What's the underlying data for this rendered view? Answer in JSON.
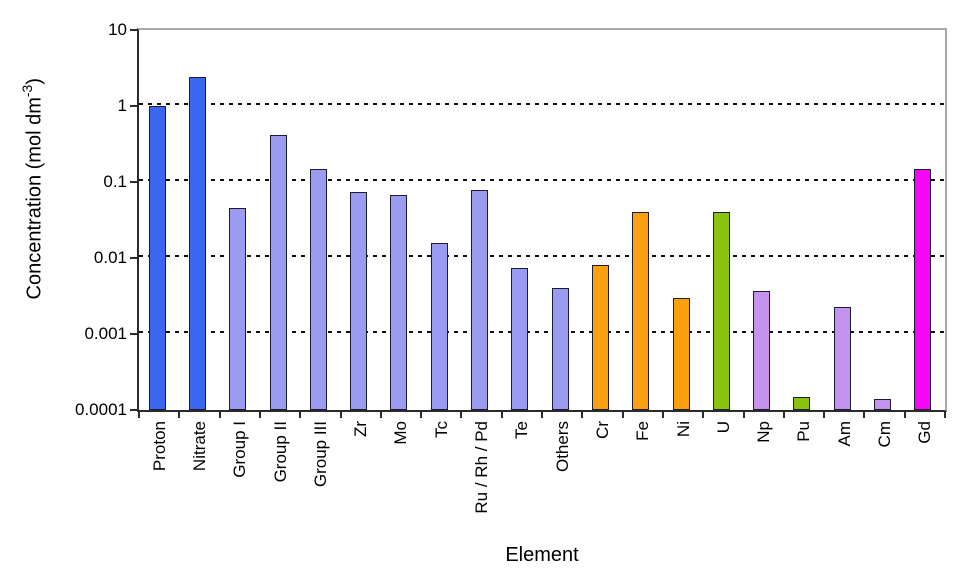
{
  "chart_data": {
    "type": "bar",
    "title": "",
    "xlabel": "Element",
    "ylabel_main": "Concentration (mol dm",
    "ylabel_sup": "-3",
    "ylabel_close": ")",
    "yscale": "log",
    "ylim": [
      0.0001,
      10
    ],
    "ytick_labels": [
      "10",
      "1",
      "0.1",
      "0.01",
      "0.001",
      "0.0001"
    ],
    "ytick_values": [
      10,
      1,
      0.1,
      0.01,
      0.001,
      0.0001
    ],
    "gridline_values": [
      1,
      0.1,
      0.01,
      0.001
    ],
    "grid": "horizontal-dashed",
    "legend": "none",
    "categories": [
      "Proton",
      "Nitrate",
      "Group I",
      "Group II",
      "Group III",
      "Zr",
      "Mo",
      "Tc",
      "Ru / Rh / Pd",
      "Te",
      "Others",
      "Cr",
      "Fe",
      "Ni",
      "U",
      "Np",
      "Pu",
      "Am",
      "Cm",
      "Gd"
    ],
    "values": [
      1.0,
      2.4,
      0.045,
      0.41,
      0.15,
      0.075,
      0.068,
      0.016,
      0.078,
      0.0075,
      0.004,
      0.008,
      0.04,
      0.003,
      0.04,
      0.0037,
      0.00015,
      0.0023,
      0.00014,
      0.15
    ],
    "bar_colors": [
      "#3B66EF",
      "#3B66EF",
      "#9B9BF2",
      "#9B9BF2",
      "#9B9BF2",
      "#9B9BF2",
      "#9B9BF2",
      "#9B9BF2",
      "#9B9BF2",
      "#9B9BF2",
      "#9B9BF2",
      "#FBA00F",
      "#FBA00F",
      "#FBA00F",
      "#8CC30F",
      "#C393EE",
      "#8CC30F",
      "#C393EE",
      "#C393EE",
      "#F607F6"
    ],
    "color_key": {
      "bulk_blue": "#3B66EF",
      "fission_product_periwinkle": "#9B9BF2",
      "corrosion_product_orange": "#FBA00F",
      "actinide_green": "#8CC30F",
      "minor_actinide_lavender": "#C393EE",
      "gadolinium_magenta": "#F607F6"
    },
    "bar_border_color": "#1c1c30",
    "axis_color": "#2b2b2b",
    "frame_color": "#a9a9a9"
  }
}
